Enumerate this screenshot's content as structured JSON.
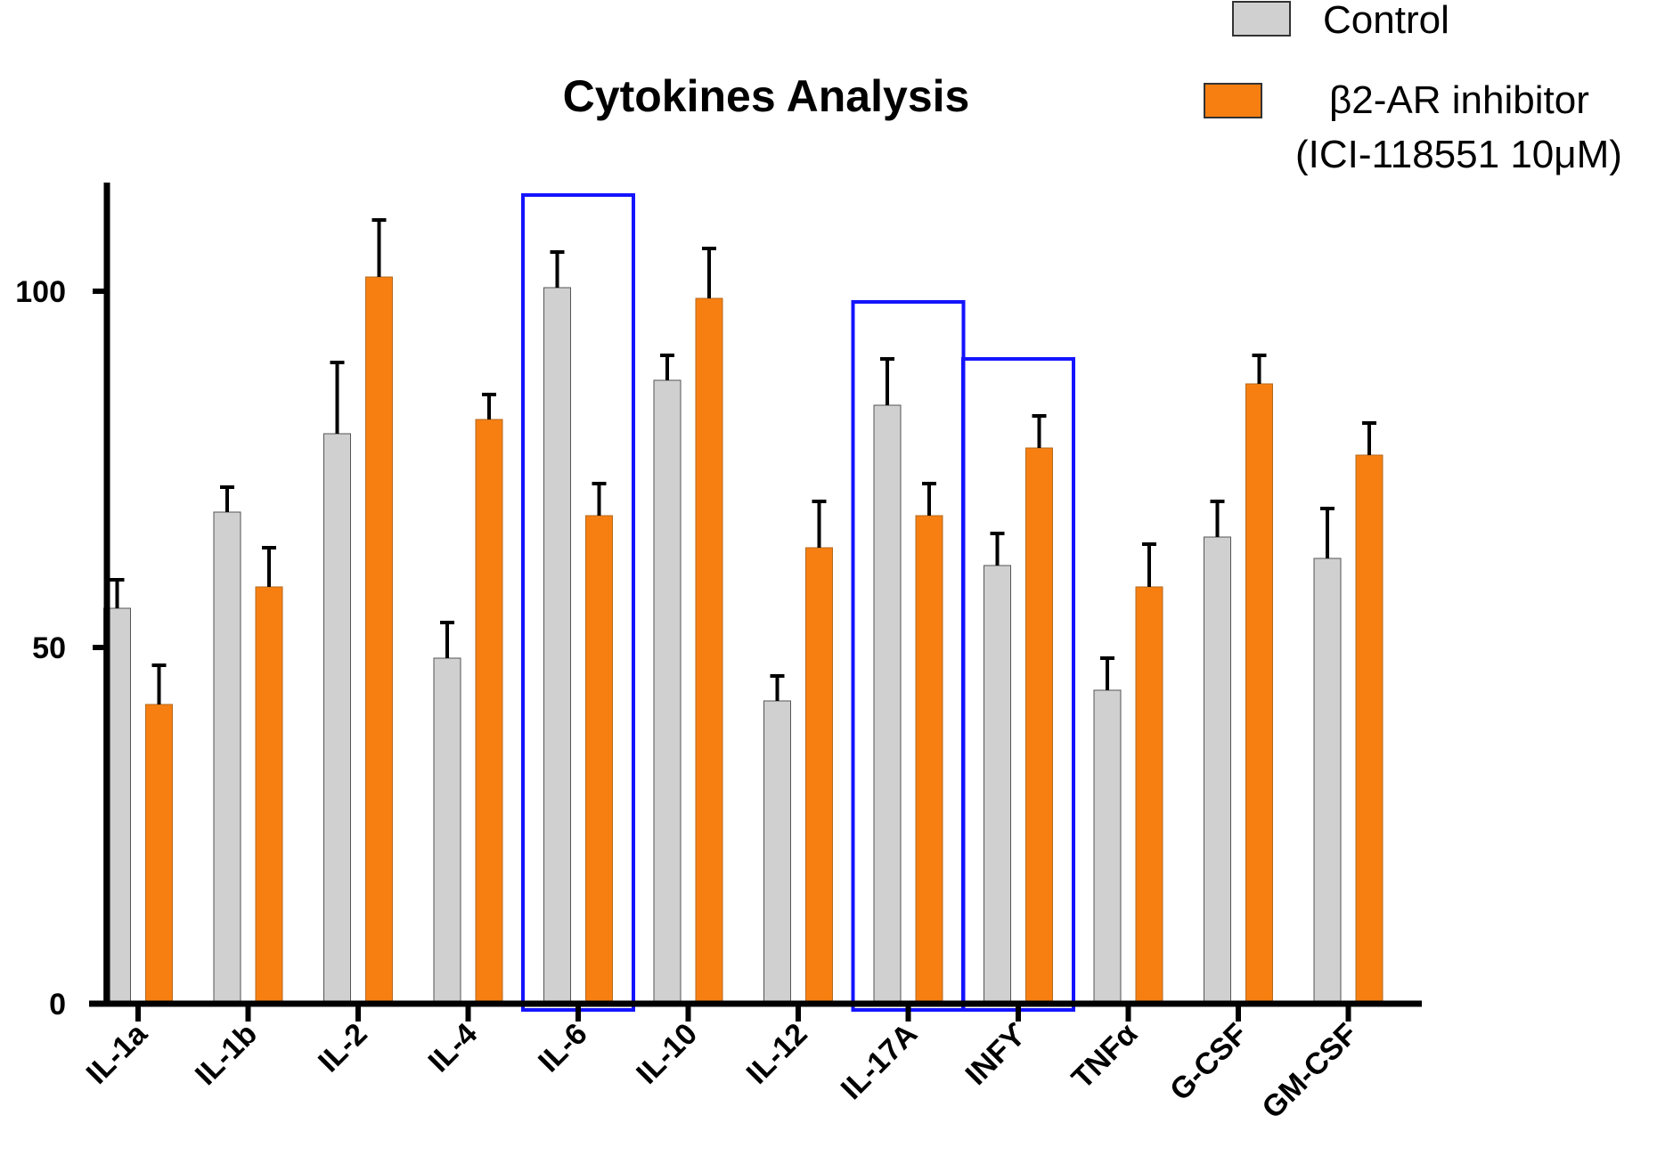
{
  "chart_data": {
    "type": "bar",
    "title": "Cytokines Analysis",
    "xlabel": "",
    "ylabel": "",
    "ylim": [
      0,
      112
    ],
    "yticks": [
      0,
      50,
      100
    ],
    "categories": [
      "IL-1a",
      "IL-1b",
      "IL-2",
      "IL-4",
      "IL-6",
      "IL-10",
      "IL-12",
      "IL-17A",
      "INFϒ",
      "TNFα",
      "G-CSF",
      "GM-CSF"
    ],
    "series": [
      {
        "name": "Control",
        "color": "#d0d0d0",
        "values": [
          55.5,
          69,
          80,
          48.5,
          100.5,
          87.5,
          42.5,
          84,
          61.5,
          44,
          65.5,
          62.5
        ],
        "errors": [
          4,
          3.5,
          10,
          5,
          5,
          3.5,
          3.5,
          6.5,
          4.5,
          4.5,
          5,
          7
        ]
      },
      {
        "name": "β2-AR inhibitor",
        "name_line2": "(ICI-118551 10μM)",
        "color": "#f77f11",
        "values": [
          42,
          58.5,
          102,
          82,
          68.5,
          99,
          64,
          68.5,
          78,
          58.5,
          87,
          77
        ],
        "errors": [
          5.5,
          5.5,
          8,
          3.5,
          4.5,
          7,
          6.5,
          4.5,
          4.5,
          6,
          4,
          4.5
        ]
      }
    ],
    "highlighted_categories": [
      "IL-6",
      "IL-17A",
      "INFϒ"
    ],
    "highlight_color": "#1414ff",
    "legend_position": "top-right",
    "grid": false
  }
}
